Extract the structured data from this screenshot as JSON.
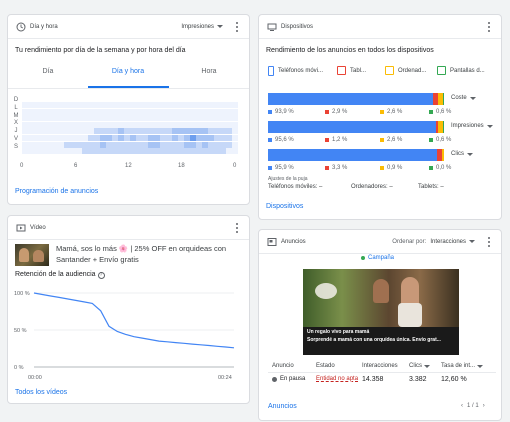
{
  "colors": {
    "blue": "#4285f4",
    "red": "#ea4335",
    "yellow": "#fbbc04",
    "green": "#34a853",
    "link": "#1a73e8"
  },
  "day_hour": {
    "title": "Día y hora",
    "metric": "Impresiones",
    "subtitle": "Tu rendimiento por día de la semana y por hora del día",
    "tabs": [
      "Día",
      "Día y hora",
      "Hora"
    ],
    "active_tab": 1,
    "days": [
      "D",
      "L",
      "M",
      "X",
      "J",
      "V",
      "S"
    ],
    "hours": [
      "0",
      "6",
      "12",
      "18",
      "0"
    ],
    "link": "Programación de anuncios",
    "heat": [
      [
        0,
        0,
        0,
        0,
        0,
        0,
        0,
        0,
        0,
        0,
        0,
        0,
        0,
        0,
        0,
        0,
        0,
        0,
        0,
        0,
        0,
        0,
        0,
        0,
        0,
        0,
        0,
        0,
        0,
        0,
        0,
        0,
        0,
        0,
        0,
        0
      ],
      [
        0,
        0,
        0,
        0,
        0,
        0,
        0,
        0,
        0,
        0,
        0,
        0,
        0,
        0,
        0,
        0,
        0,
        0,
        0,
        0,
        0,
        0,
        0,
        0,
        0,
        0,
        0,
        0,
        0,
        0,
        0,
        0,
        0,
        0,
        0,
        0
      ],
      [
        0,
        0,
        0,
        0,
        0,
        0,
        0,
        0,
        0,
        0,
        0,
        0,
        0,
        0,
        0,
        0,
        0,
        0,
        0,
        0,
        0,
        0,
        0,
        0,
        0,
        0,
        0,
        0,
        0,
        0,
        0,
        0,
        0,
        0,
        0,
        0
      ],
      [
        0,
        0,
        0,
        0,
        0,
        0,
        0,
        0,
        0,
        0,
        0,
        0,
        0,
        0,
        0,
        0,
        0,
        0,
        0,
        0,
        0,
        0,
        0,
        0,
        0,
        0,
        0,
        0,
        0,
        0,
        0,
        0,
        0,
        0,
        0,
        0
      ],
      [
        0,
        0,
        0,
        0,
        0,
        0,
        0,
        0,
        0,
        0,
        0,
        0,
        1,
        1,
        1,
        1,
        2,
        1,
        1,
        1,
        1,
        1,
        1,
        1,
        1,
        2,
        2,
        2,
        2,
        2,
        2,
        1,
        1,
        1,
        1,
        0
      ],
      [
        0,
        0,
        0,
        0,
        0,
        0,
        0,
        0,
        0,
        0,
        0,
        1,
        1,
        2,
        2,
        1,
        2,
        1,
        2,
        1,
        1,
        2,
        2,
        1,
        1,
        2,
        1,
        2,
        3,
        2,
        2,
        2,
        1,
        1,
        1,
        0
      ],
      [
        0,
        0,
        0,
        0,
        0,
        0,
        0,
        1,
        1,
        1,
        1,
        1,
        1,
        2,
        1,
        1,
        1,
        1,
        1,
        1,
        1,
        2,
        2,
        1,
        1,
        1,
        1,
        2,
        2,
        1,
        2,
        1,
        1,
        1,
        1,
        0
      ],
      [
        0,
        0,
        0,
        0,
        0,
        0,
        0,
        0,
        0,
        0,
        1,
        1,
        1,
        1,
        1,
        1,
        1,
        1,
        1,
        1,
        1,
        1,
        1,
        1,
        1,
        1,
        1,
        1,
        1,
        1,
        1,
        1,
        1,
        1,
        0,
        0
      ]
    ]
  },
  "devices": {
    "title": "Dispositivos",
    "subtitle": "Rendimiento de los anuncios en todos los dispositivos",
    "legend": [
      {
        "label": "Teléfonos móvi...",
        "color": "#4285f4"
      },
      {
        "label": "Tabl...",
        "color": "#ea4335"
      },
      {
        "label": "Ordenad...",
        "color": "#fbbc04"
      },
      {
        "label": "Pantallas d...",
        "color": "#34a853"
      }
    ],
    "rows": [
      {
        "metric": "Coste",
        "values": [
          93.9,
          2.9,
          2.6,
          0.6
        ],
        "labels": [
          "93,9 %",
          "2,9 %",
          "2,6 %",
          "0,6 %"
        ]
      },
      {
        "metric": "Impresiones",
        "values": [
          95.6,
          1.2,
          2.6,
          0.6
        ],
        "labels": [
          "95,6 %",
          "1,2 %",
          "2,6 %",
          "0,6 %"
        ]
      },
      {
        "metric": "Clics",
        "values": [
          95.9,
          3.3,
          0.9,
          0.0
        ],
        "labels": [
          "95,9 %",
          "3,3 %",
          "0,9 %",
          "0,0 %"
        ]
      }
    ],
    "bid_adjust_title": "Ajustes de la puja",
    "bid_mobile": "Teléfonos móviles: –",
    "bid_desktop": "Ordenadores: –",
    "bid_tablet": "Tablets: –",
    "link": "Dispositivos"
  },
  "video": {
    "title": "Vídeo",
    "video_title_1": "Mamá, sos lo más 🌸 | 25% OFF en orquideas con",
    "video_title_2": "Santander + Envío gratis",
    "retention_title": "Retención de la audiencia",
    "y_ticks": [
      "100 %",
      "50 %",
      "0 %"
    ],
    "x_ticks": [
      "00:00",
      "00:24"
    ],
    "retention_curve": [
      100,
      98,
      96,
      94,
      92,
      90,
      88,
      86,
      76,
      55,
      48,
      44,
      41,
      39,
      37,
      35,
      34,
      33,
      32,
      31,
      30,
      29,
      28,
      27,
      26
    ],
    "link": "Todos los vídeos"
  },
  "ads": {
    "title": "Anuncios",
    "sort_label": "Ordenar por:",
    "sort_value": "Interacciones",
    "campaign": "Campaña",
    "preview_line1": "Un regalo vivo para mamá",
    "preview_line2": "Sorprendé a mamá con una orquídea única. Envío grat...",
    "columns": [
      "Anuncio",
      "Estado",
      "Interacciones",
      "Clics",
      "Tasa de int..."
    ],
    "row": {
      "ad": "En pausa",
      "status": "Entidad no apta",
      "interactions": "14.358",
      "clicks": "3.382",
      "rate": "12,60 %"
    },
    "link": "Anuncios",
    "pager": "1 / 1"
  }
}
